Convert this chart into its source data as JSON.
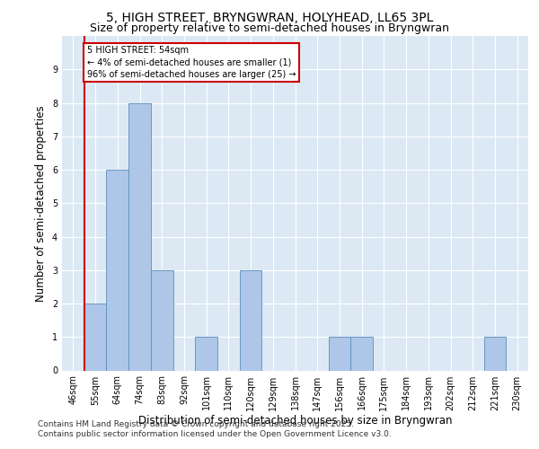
{
  "title1": "5, HIGH STREET, BRYNGWRAN, HOLYHEAD, LL65 3PL",
  "title2": "Size of property relative to semi-detached houses in Bryngwran",
  "xlabel": "Distribution of semi-detached houses by size in Bryngwran",
  "ylabel": "Number of semi-detached properties",
  "bin_labels": [
    "46sqm",
    "55sqm",
    "64sqm",
    "74sqm",
    "83sqm",
    "92sqm",
    "101sqm",
    "110sqm",
    "120sqm",
    "129sqm",
    "138sqm",
    "147sqm",
    "156sqm",
    "166sqm",
    "175sqm",
    "184sqm",
    "193sqm",
    "202sqm",
    "212sqm",
    "221sqm",
    "230sqm"
  ],
  "values": [
    0,
    2,
    6,
    8,
    3,
    0,
    1,
    0,
    3,
    0,
    0,
    0,
    1,
    1,
    0,
    0,
    0,
    0,
    0,
    1,
    0
  ],
  "bar_color": "#aec6e8",
  "bar_edge_color": "#5a8fbd",
  "highlight_line_color": "#cc0000",
  "highlight_bin_index": 1,
  "highlight_label": "5 HIGH STREET: 54sqm\n← 4% of semi-detached houses are smaller (1)\n96% of semi-detached houses are larger (25) →",
  "box_color": "#cc0000",
  "ylim": [
    0,
    10
  ],
  "yticks": [
    0,
    1,
    2,
    3,
    4,
    5,
    6,
    7,
    8,
    9,
    10
  ],
  "grid_color": "#ffffff",
  "bg_color": "#dce9f5",
  "footer1": "Contains HM Land Registry data © Crown copyright and database right 2025.",
  "footer2": "Contains public sector information licensed under the Open Government Licence v3.0.",
  "title1_fontsize": 10,
  "title2_fontsize": 9,
  "axis_label_fontsize": 8.5,
  "tick_fontsize": 7,
  "footer_fontsize": 6.5,
  "annotation_fontsize": 7
}
